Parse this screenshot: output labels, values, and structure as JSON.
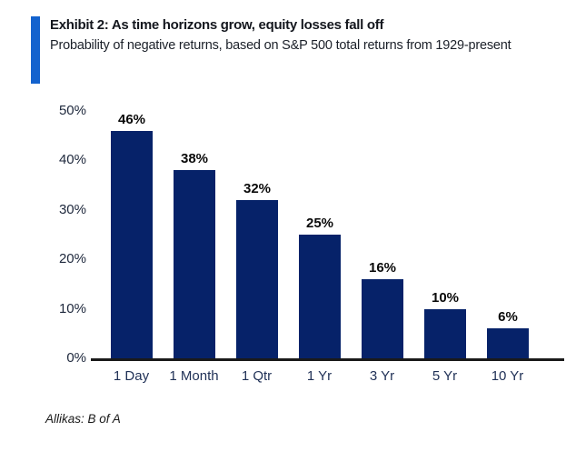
{
  "header": {
    "title": "Exhibit 2: As time horizons grow, equity losses fall off",
    "subtitle": "Probability of negative returns, based on S&P 500 total returns from 1929-present"
  },
  "chart_data": {
    "type": "bar",
    "title": "Exhibit 2: As time horizons grow, equity losses fall off",
    "subtitle": "Probability of negative returns, based on S&P 500 total returns from 1929-present",
    "categories": [
      "1 Day",
      "1 Month",
      "1 Qtr",
      "1 Yr",
      "3 Yr",
      "5 Yr",
      "10 Yr"
    ],
    "values": [
      46,
      38,
      32,
      25,
      16,
      10,
      6
    ],
    "data_labels": [
      "46%",
      "38%",
      "32%",
      "25%",
      "16%",
      "10%",
      "6%"
    ],
    "xlabel": "",
    "ylabel": "",
    "ylim": [
      0,
      50
    ],
    "ytick_labels": [
      "0%",
      "10%",
      "20%",
      "30%",
      "40%",
      "50%"
    ],
    "grid": false,
    "legend": false,
    "bar_color": "#062269"
  },
  "footer": {
    "source": "Allikas: B of A"
  },
  "colors": {
    "accent_bar": "#1362ce",
    "bar_fill": "#062269",
    "axis_line": "#1a1a1a",
    "data_label": "#0a0a0a",
    "tick_label": "#202a3e",
    "category_label": "#1f3056",
    "title": "#14171e",
    "subtitle": "#1b2029",
    "source": "#1a1a1a"
  }
}
